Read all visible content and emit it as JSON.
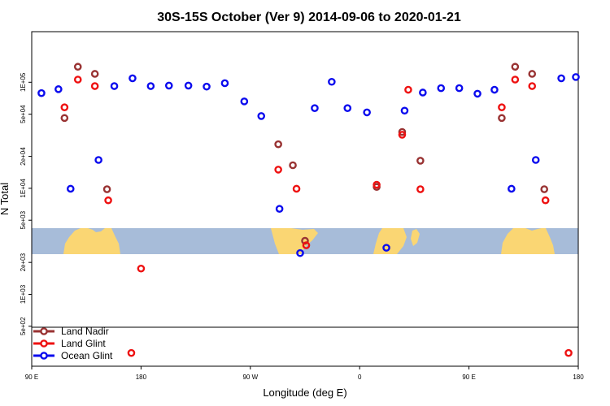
{
  "chart_data": {
    "type": "scatter",
    "title": "30S-15S October (Ver 9)   2014-09-06 to 2020-01-21",
    "xlabel": "Longitude (deg E)",
    "ylabel": "N Total",
    "x_ticks": [
      {
        "value": 90,
        "label": "90 E"
      },
      {
        "value": 180,
        "label": "180"
      },
      {
        "value": 270,
        "label": "90 W"
      },
      {
        "value": 360,
        "label": "0"
      },
      {
        "value": 450,
        "label": "90 E"
      },
      {
        "value": 540,
        "label": "180"
      }
    ],
    "xlim": [
      90,
      540
    ],
    "y_scale": "log",
    "ylim": [
      210,
      300000
    ],
    "y_ticks": [
      {
        "value": 500,
        "label": "5e+02"
      },
      {
        "value": 1000,
        "label": "1E+03"
      },
      {
        "value": 2000,
        "label": "2e+03"
      },
      {
        "value": 5000,
        "label": "5e+03"
      },
      {
        "value": 10000,
        "label": "1E+04"
      },
      {
        "value": 20000,
        "label": "2e+04"
      },
      {
        "value": 50000,
        "label": "5e+04"
      },
      {
        "value": 100000,
        "label": "1E+05"
      }
    ],
    "grid": false,
    "legend_position": "bottom-left",
    "map_band": {
      "colors": {
        "ocean": "#a7bcd9",
        "land": "#fad673"
      }
    },
    "series": [
      {
        "name": "Land Nadir",
        "color": "#993333",
        "points": [
          [
            117,
            46000
          ],
          [
            128,
            140000
          ],
          [
            142,
            120000
          ],
          [
            152,
            9800
          ],
          [
            293,
            26000
          ],
          [
            305,
            16500
          ],
          [
            315,
            3200
          ],
          [
            374,
            10300
          ],
          [
            395,
            34000
          ],
          [
            410,
            18200
          ],
          [
            477,
            46000
          ],
          [
            488,
            140000
          ],
          [
            502,
            120000
          ],
          [
            512,
            9800
          ]
        ]
      },
      {
        "name": "Land Glint",
        "color": "#ee1111",
        "points": [
          [
            117,
            58000
          ],
          [
            128,
            106000
          ],
          [
            142,
            92000
          ],
          [
            153,
            7700
          ],
          [
            172,
            280
          ],
          [
            180,
            1750
          ],
          [
            293,
            15000
          ],
          [
            308,
            9900
          ],
          [
            316,
            2900
          ],
          [
            374,
            10800
          ],
          [
            395,
            32000
          ],
          [
            400,
            85000
          ],
          [
            410,
            9800
          ],
          [
            477,
            58000
          ],
          [
            488,
            106000
          ],
          [
            502,
            92000
          ],
          [
            513,
            7700
          ],
          [
            532,
            280
          ]
        ]
      },
      {
        "name": "Ocean Glint",
        "color": "#0b0bee",
        "points": [
          [
            98,
            79000
          ],
          [
            112,
            86000
          ],
          [
            122,
            9900
          ],
          [
            145,
            18500
          ],
          [
            158,
            92000
          ],
          [
            173,
            109000
          ],
          [
            188,
            92000
          ],
          [
            203,
            93000
          ],
          [
            219,
            93000
          ],
          [
            234,
            91000
          ],
          [
            249,
            98000
          ],
          [
            265,
            66000
          ],
          [
            279,
            48000
          ],
          [
            294,
            6400
          ],
          [
            311,
            2450
          ],
          [
            323,
            57000
          ],
          [
            337,
            101000
          ],
          [
            350,
            57000
          ],
          [
            366,
            52000
          ],
          [
            382,
            2750
          ],
          [
            397,
            54000
          ],
          [
            412,
            80000
          ],
          [
            427,
            88000
          ],
          [
            442,
            88000
          ],
          [
            457,
            78000
          ],
          [
            471,
            85000
          ],
          [
            485,
            9900
          ],
          [
            505,
            18500
          ],
          [
            526,
            109000
          ],
          [
            538,
            112000
          ]
        ]
      }
    ]
  }
}
